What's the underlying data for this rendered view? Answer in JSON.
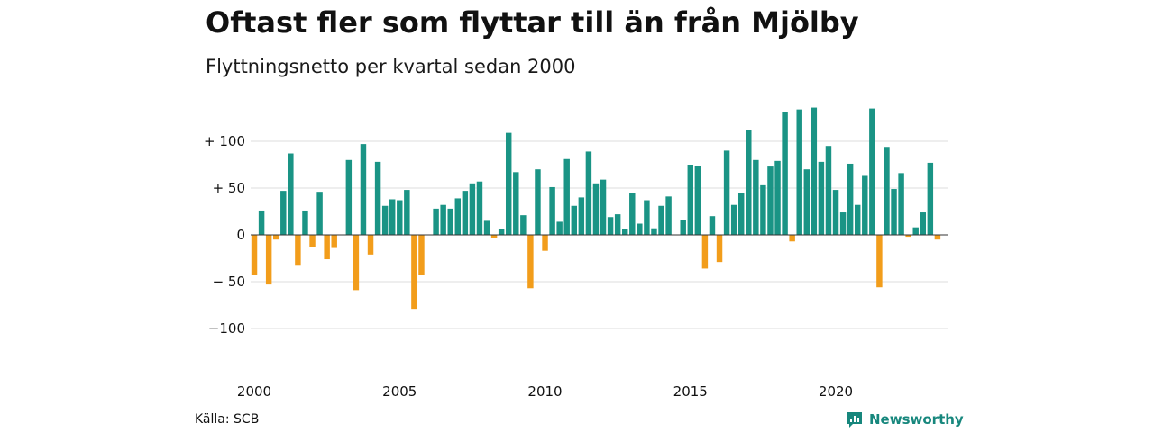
{
  "title": "Oftast fler som flyttar till än från Mjölby",
  "subtitle": "Flyttningsnetto per kvartal sedan 2000",
  "source": "Källa: SCB",
  "logo_text": "Newsworthy",
  "colors": {
    "positive": "#1a9485",
    "negative": "#f29d1b",
    "grid": "#dddddd",
    "logo": "#17877d"
  },
  "chart_data": {
    "type": "bar",
    "title": "Oftast fler som flyttar till än från Mjölby",
    "subtitle": "Flyttningsnetto per kvartal sedan 2000",
    "xlabel": "",
    "ylabel": "",
    "ylim": [
      -130,
      130
    ],
    "y_ticks": [
      100,
      50,
      0,
      -50,
      -100
    ],
    "y_tick_labels": [
      "+ 100",
      "+  50",
      "0",
      "− 50",
      "−100"
    ],
    "x_tick_labels": [
      "2000",
      "2005",
      "2010",
      "2015",
      "2020"
    ],
    "x_tick_index": [
      0,
      20,
      40,
      60,
      80
    ],
    "grid": true,
    "categories": [
      "2000K1",
      "2000K2",
      "2000K3",
      "2000K4",
      "2001K1",
      "2001K2",
      "2001K3",
      "2001K4",
      "2002K1",
      "2002K2",
      "2002K3",
      "2002K4",
      "2003K1",
      "2003K2",
      "2003K3",
      "2003K4",
      "2004K1",
      "2004K2",
      "2004K3",
      "2004K4",
      "2005K1",
      "2005K2",
      "2005K3",
      "2005K4",
      "2006K1",
      "2006K2",
      "2006K3",
      "2006K4",
      "2007K1",
      "2007K2",
      "2007K3",
      "2007K4",
      "2008K1",
      "2008K2",
      "2008K3",
      "2008K4",
      "2009K1",
      "2009K2",
      "2009K3",
      "2009K4",
      "2010K1",
      "2010K2",
      "2010K3",
      "2010K4",
      "2011K1",
      "2011K2",
      "2011K3",
      "2011K4",
      "2012K1",
      "2012K2",
      "2012K3",
      "2012K4",
      "2013K1",
      "2013K2",
      "2013K3",
      "2013K4",
      "2014K1",
      "2014K2",
      "2014K3",
      "2014K4",
      "2015K1",
      "2015K2",
      "2015K3",
      "2015K4",
      "2016K1",
      "2016K2",
      "2016K3",
      "2016K4",
      "2017K1",
      "2017K2",
      "2017K3",
      "2017K4",
      "2018K1",
      "2018K2",
      "2018K3",
      "2018K4",
      "2019K1",
      "2019K2",
      "2019K3",
      "2019K4",
      "2020K1",
      "2020K2",
      "2020K3",
      "2020K4",
      "2021K1",
      "2021K2",
      "2021K3",
      "2021K4",
      "2022K1",
      "2022K2",
      "2022K3",
      "2022K4",
      "2023K1",
      "2023K2",
      "2023K3",
      "2023K4"
    ],
    "values": [
      -43,
      26,
      -53,
      -5,
      47,
      87,
      -32,
      26,
      -13,
      46,
      -26,
      -14,
      0,
      80,
      -59,
      97,
      -21,
      78,
      31,
      38,
      37,
      48,
      -79,
      -43,
      0,
      28,
      32,
      28,
      39,
      47,
      55,
      57,
      15,
      -3,
      6,
      109,
      67,
      21,
      -57,
      70,
      -17,
      51,
      14,
      81,
      31,
      40,
      89,
      55,
      59,
      19,
      22,
      6,
      45,
      12,
      37,
      7,
      31,
      41,
      0,
      16,
      75,
      74,
      -36,
      20,
      -29,
      90,
      32,
      45,
      112,
      80,
      53,
      73,
      79,
      131,
      -7,
      134,
      70,
      136,
      78,
      95,
      48,
      24,
      76,
      32,
      63,
      135,
      -56,
      94,
      49,
      66,
      -2,
      8,
      24,
      77,
      -5,
      0
    ]
  }
}
